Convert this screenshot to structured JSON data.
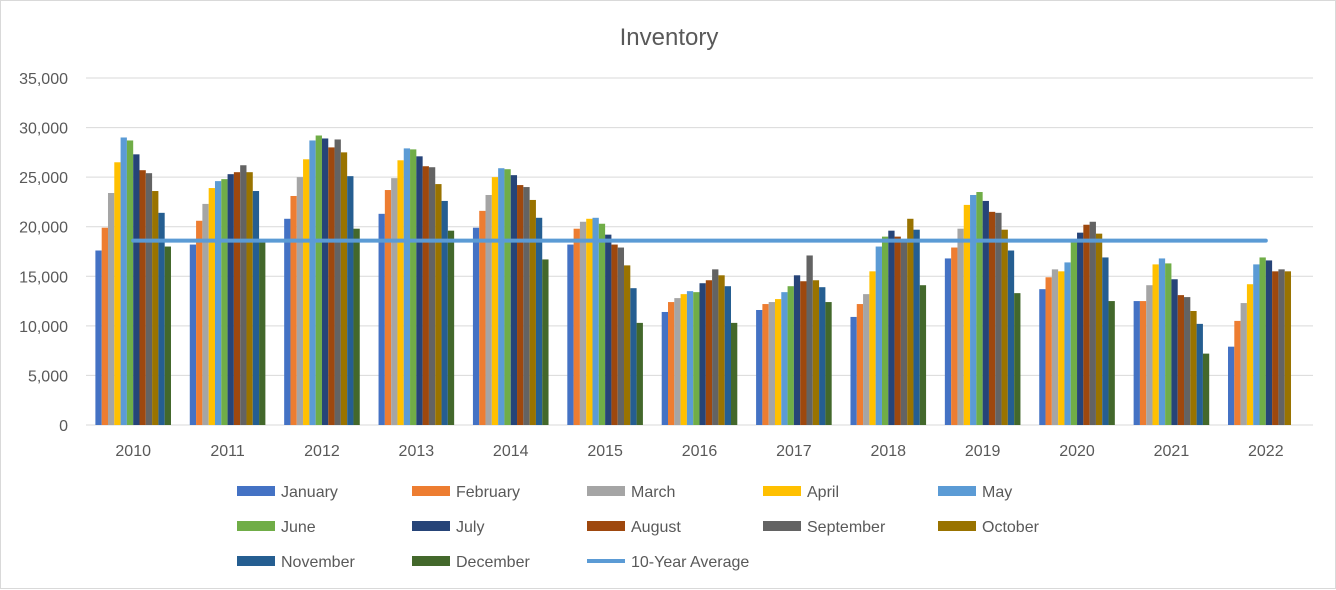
{
  "chart_data": {
    "type": "bar",
    "title": "Inventory",
    "xlabel": "",
    "ylabel": "",
    "ylim": [
      0,
      35000
    ],
    "yticks": [
      "0",
      "5,000",
      "10,000",
      "15,000",
      "20,000",
      "25,000",
      "30,000",
      "35,000"
    ],
    "ytick_values": [
      0,
      5000,
      10000,
      15000,
      20000,
      25000,
      30000,
      35000
    ],
    "grid": true,
    "legend_position": "bottom",
    "categories": [
      "2010",
      "2011",
      "2012",
      "2013",
      "2014",
      "2015",
      "2016",
      "2017",
      "2018",
      "2019",
      "2020",
      "2021",
      "2022"
    ],
    "series": [
      {
        "name": "January",
        "color": "#4472C4",
        "values": [
          17600,
          18200,
          20800,
          21300,
          19900,
          18200,
          11400,
          11600,
          10900,
          16800,
          13700,
          12500,
          7900
        ]
      },
      {
        "name": "February",
        "color": "#ED7D31",
        "values": [
          19900,
          20600,
          23100,
          23700,
          21600,
          19800,
          12400,
          12200,
          12200,
          17900,
          14900,
          12500,
          10500
        ]
      },
      {
        "name": "March",
        "color": "#A5A5A5",
        "values": [
          23400,
          22300,
          25000,
          24900,
          23200,
          20500,
          12800,
          12400,
          13200,
          19800,
          15700,
          14100,
          12300
        ]
      },
      {
        "name": "April",
        "color": "#FFC000",
        "values": [
          26500,
          23900,
          26800,
          26700,
          25000,
          20800,
          13200,
          12700,
          15500,
          22200,
          15500,
          16200,
          14200
        ]
      },
      {
        "name": "May",
        "color": "#5B9BD5",
        "values": [
          29000,
          24600,
          28700,
          27900,
          25900,
          20900,
          13500,
          13400,
          18000,
          23200,
          16400,
          16800,
          16200
        ]
      },
      {
        "name": "June",
        "color": "#70AD47",
        "values": [
          28700,
          24800,
          29200,
          27800,
          25800,
          20300,
          13400,
          14000,
          19000,
          23500,
          18500,
          16300,
          16900
        ]
      },
      {
        "name": "July",
        "color": "#264478",
        "values": [
          27300,
          25300,
          28900,
          27100,
          25200,
          19200,
          14300,
          15100,
          19600,
          22600,
          19400,
          14700,
          16600
        ]
      },
      {
        "name": "August",
        "color": "#9E480E",
        "values": [
          25700,
          25500,
          28000,
          26100,
          24200,
          18200,
          14600,
          14500,
          19000,
          21500,
          20200,
          13100,
          15500
        ]
      },
      {
        "name": "September",
        "color": "#636363",
        "values": [
          25400,
          26200,
          28800,
          26000,
          24000,
          17900,
          15700,
          17100,
          18700,
          21400,
          20500,
          12900,
          15700
        ]
      },
      {
        "name": "October",
        "color": "#997300",
        "values": [
          23600,
          25500,
          27500,
          24300,
          22700,
          16100,
          15100,
          14600,
          20800,
          19700,
          19300,
          11500,
          15500
        ]
      },
      {
        "name": "November",
        "color": "#255E91",
        "values": [
          21400,
          23600,
          25100,
          22600,
          20900,
          13800,
          14000,
          13900,
          19700,
          17600,
          16900,
          10200,
          0
        ]
      },
      {
        "name": "December",
        "color": "#43682B",
        "values": [
          18000,
          18600,
          19800,
          19600,
          16700,
          10300,
          10300,
          12400,
          14100,
          13300,
          12500,
          7200,
          0
        ]
      }
    ],
    "reference_line": {
      "name": "10-Year Average",
      "color": "#5B9BD5",
      "value": 18600
    },
    "legend": [
      "January",
      "February",
      "March",
      "April",
      "May",
      "June",
      "July",
      "August",
      "September",
      "October",
      "November",
      "December",
      "10-Year Average"
    ]
  }
}
